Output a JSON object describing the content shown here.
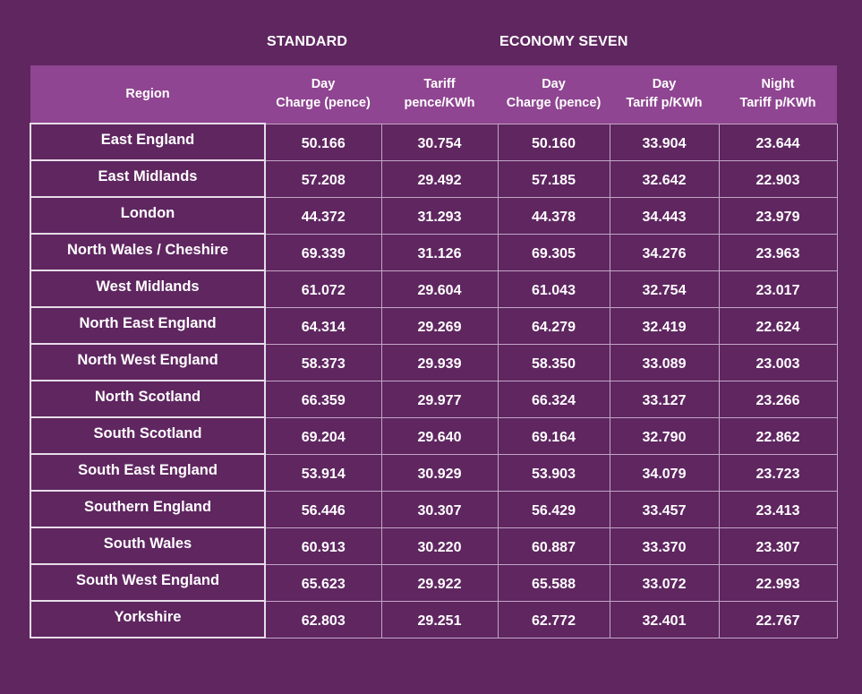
{
  "groups": {
    "standard": "STANDARD",
    "economy_seven": "ECONOMY SEVEN"
  },
  "headers": {
    "region": "Region",
    "std_day_line1": "Day",
    "std_day_line2": "Charge (pence)",
    "std_tariff_line1": "Tariff",
    "std_tariff_line2": "pence/KWh",
    "e7_day_line1": "Day",
    "e7_day_line2": "Charge (pence)",
    "e7_daytariff_line1": "Day",
    "e7_daytariff_line2": "Tariff p/KWh",
    "e7_night_line1": "Night",
    "e7_night_line2": "Tariff p/KWh"
  },
  "rows": [
    {
      "region": "East England",
      "values": [
        "50.166",
        "30.754",
        "50.160",
        "33.904",
        "23.644"
      ]
    },
    {
      "region": "East Midlands",
      "values": [
        "57.208",
        "29.492",
        "57.185",
        "32.642",
        "22.903"
      ]
    },
    {
      "region": "London",
      "values": [
        "44.372",
        "31.293",
        "44.378",
        "34.443",
        "23.979"
      ]
    },
    {
      "region": "North Wales / Cheshire",
      "values": [
        "69.339",
        "31.126",
        "69.305",
        "34.276",
        "23.963"
      ]
    },
    {
      "region": "West Midlands",
      "values": [
        "61.072",
        "29.604",
        "61.043",
        "32.754",
        "23.017"
      ]
    },
    {
      "region": "North East England",
      "values": [
        "64.314",
        "29.269",
        "64.279",
        "32.419",
        "22.624"
      ]
    },
    {
      "region": "North West England",
      "values": [
        "58.373",
        "29.939",
        "58.350",
        "33.089",
        "23.003"
      ]
    },
    {
      "region": "North Scotland",
      "values": [
        "66.359",
        "29.977",
        "66.324",
        "33.127",
        "23.266"
      ]
    },
    {
      "region": "South Scotland",
      "values": [
        "69.204",
        "29.640",
        "69.164",
        "32.790",
        "22.862"
      ]
    },
    {
      "region": "South East England",
      "values": [
        "53.914",
        "30.929",
        "53.903",
        "34.079",
        "23.723"
      ]
    },
    {
      "region": "Southern England",
      "values": [
        "56.446",
        "30.307",
        "56.429",
        "33.457",
        "23.413"
      ]
    },
    {
      "region": "South Wales",
      "values": [
        "60.913",
        "30.220",
        "60.887",
        "33.370",
        "23.307"
      ]
    },
    {
      "region": "South West England",
      "values": [
        "65.623",
        "29.922",
        "65.588",
        "33.072",
        "22.993"
      ]
    },
    {
      "region": "Yorkshire",
      "values": [
        "62.803",
        "29.251",
        "62.772",
        "32.401",
        "22.767"
      ]
    }
  ],
  "colors": {
    "background": "#5f2660",
    "header_band": "#8f4591",
    "text": "#ffffff",
    "grid_line": "#c2a6c6"
  }
}
